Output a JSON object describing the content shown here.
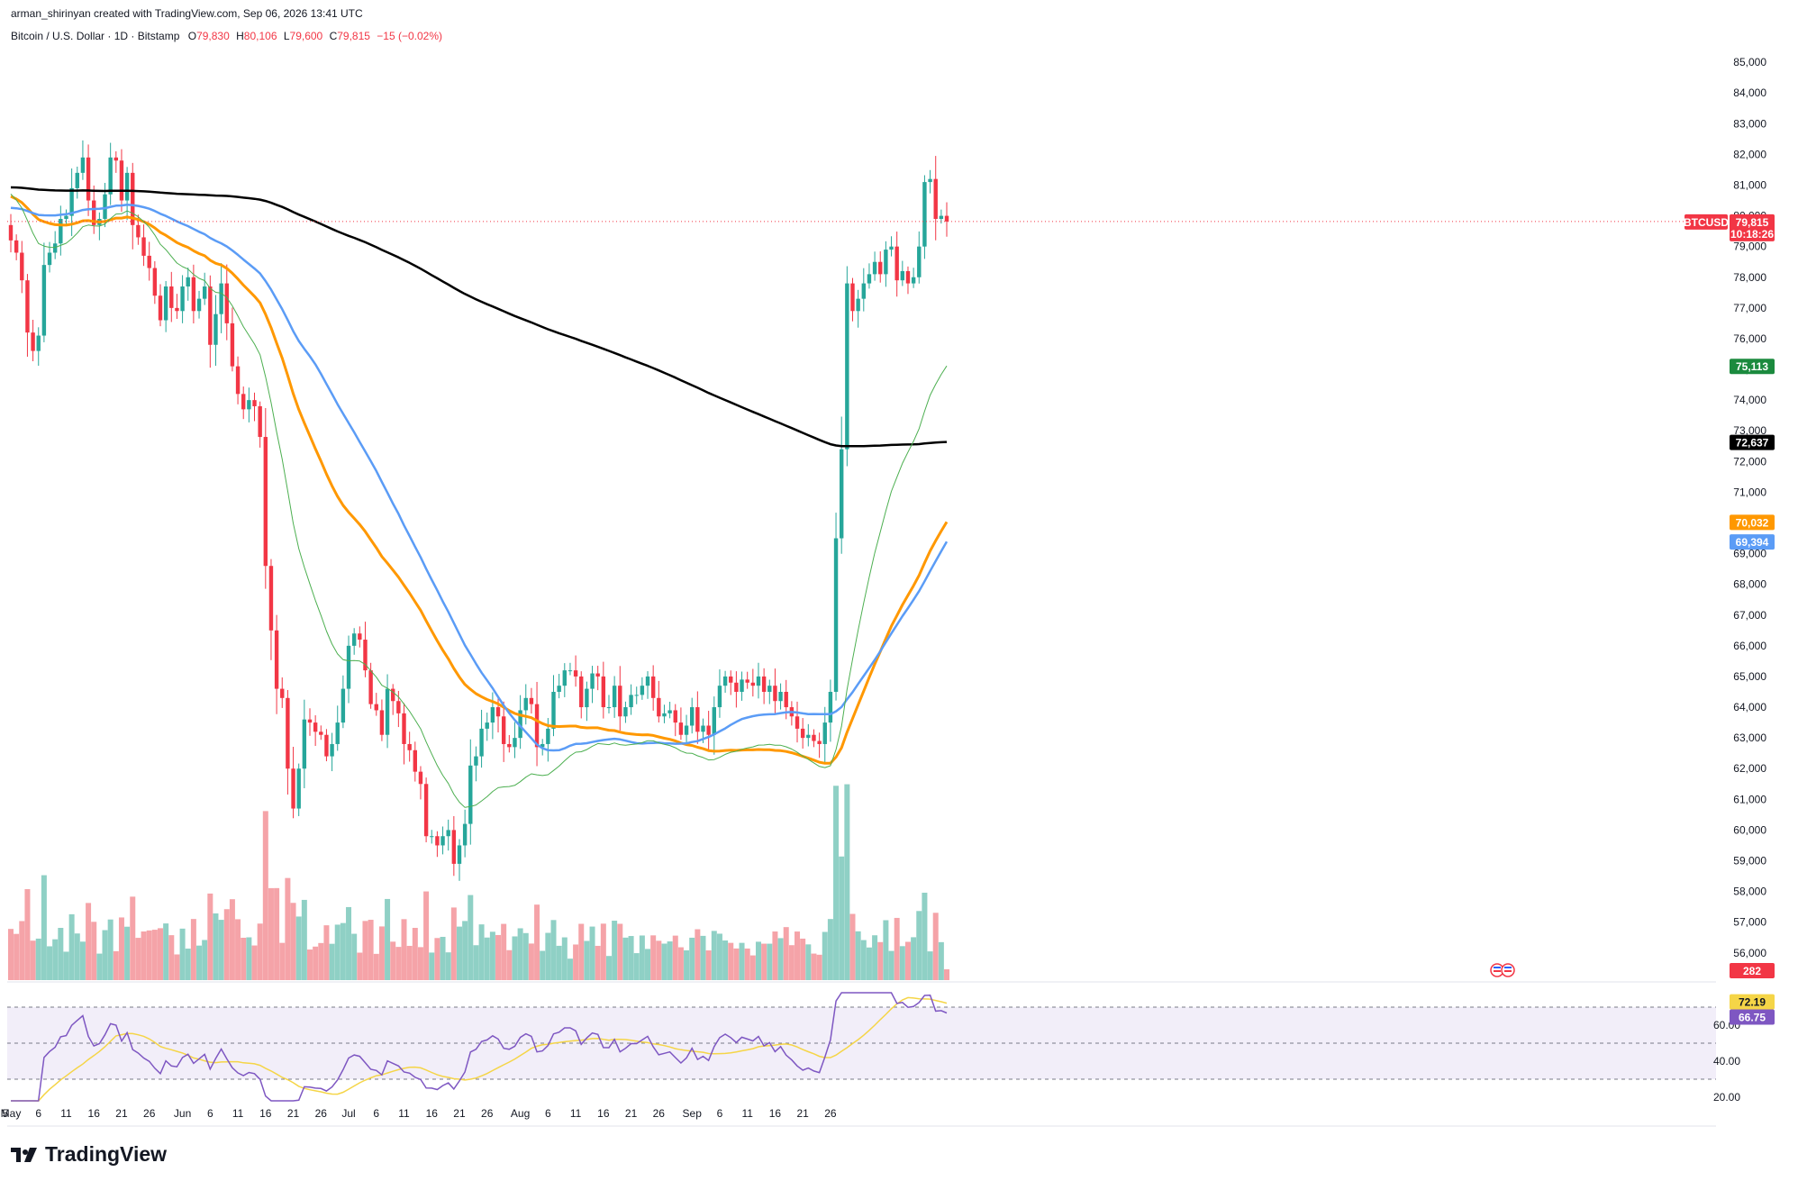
{
  "header": {
    "credit": "arman_shirinyan created with TradingView.com, Sep 06, 2026 13:41 UTC",
    "symbol_line": "Bitcoin / U.S. Dollar · 1D · Bitstamp",
    "ohlc": {
      "o_label": "O",
      "o": "79,830",
      "h_label": "H",
      "h": "80,106",
      "l_label": "L",
      "l": "79,600",
      "c_label": "C",
      "c": "79,815",
      "change": "−15 (−0.02%)"
    }
  },
  "brand": {
    "name": "TradingView",
    "icon": "tradingview-logo-icon"
  },
  "colors": {
    "up": "#26a69a",
    "down": "#f23645",
    "up_vol": "#8fd0c5",
    "down_vol": "#f5a3a8",
    "sma200": "#000000",
    "ema_orange": "#ff9800",
    "sma_blue": "#5b9cf6",
    "ema_green": "#4caf50",
    "rsi": "#7e57c2",
    "rsi_ma": "#f5d547"
  },
  "chart_data": {
    "type": "candlestick",
    "yaxis_ticks": [
      "85,000",
      "84,000",
      "83,000",
      "82,000",
      "81,000",
      "80,000",
      "79,000",
      "78,000",
      "77,000",
      "76,000",
      "75,000",
      "74,000",
      "73,000",
      "72,000",
      "71,000",
      "70,000",
      "69,000",
      "68,000",
      "67,000",
      "66,000",
      "65,000",
      "64,000",
      "63,000",
      "62,000",
      "61,000",
      "60,000",
      "59,000",
      "58,000",
      "57,000",
      "56,000"
    ],
    "ylim": [
      55700,
      85400
    ],
    "xaxis_labels": [
      {
        "label": "5",
        "day": -1
      },
      {
        "label": "May",
        "day": 0
      },
      {
        "label": "6",
        "day": 5
      },
      {
        "label": "11",
        "day": 10
      },
      {
        "label": "16",
        "day": 15
      },
      {
        "label": "21",
        "day": 20
      },
      {
        "label": "26",
        "day": 25
      },
      {
        "label": "Jun",
        "day": 31
      },
      {
        "label": "6",
        "day": 36
      },
      {
        "label": "11",
        "day": 41
      },
      {
        "label": "16",
        "day": 46
      },
      {
        "label": "21",
        "day": 51
      },
      {
        "label": "26",
        "day": 56
      },
      {
        "label": "Jul",
        "day": 61
      },
      {
        "label": "6",
        "day": 66
      },
      {
        "label": "11",
        "day": 71
      },
      {
        "label": "16",
        "day": 76
      },
      {
        "label": "21",
        "day": 81
      },
      {
        "label": "26",
        "day": 86
      },
      {
        "label": "Aug",
        "day": 92
      },
      {
        "label": "6",
        "day": 97
      },
      {
        "label": "11",
        "day": 102
      },
      {
        "label": "16",
        "day": 107
      },
      {
        "label": "21",
        "day": 112
      },
      {
        "label": "26",
        "day": 117
      },
      {
        "label": "Sep",
        "day": 123
      },
      {
        "label": "6",
        "day": 128
      },
      {
        "label": "11",
        "day": 133
      },
      {
        "label": "16",
        "day": 138
      },
      {
        "label": "21",
        "day": 143
      },
      {
        "label": "26",
        "day": 148
      }
    ],
    "closes": [
      79200,
      78800,
      77900,
      76200,
      75600,
      76100,
      78400,
      78800,
      79100,
      79900,
      80000,
      80900,
      81400,
      81900,
      80500,
      79700,
      79900,
      80700,
      81900,
      81800,
      80500,
      81400,
      79700,
      79300,
      78700,
      78300,
      77400,
      76600,
      77700,
      77000,
      76900,
      77700,
      78000,
      76900,
      77300,
      77700,
      75800,
      76800,
      77800,
      76500,
      75100,
      74200,
      73700,
      74000,
      73800,
      72800,
      68600,
      66500,
      64600,
      64300,
      62000,
      60700,
      62000,
      63600,
      63500,
      63200,
      63100,
      62400,
      62800,
      63500,
      64600,
      66000,
      66400,
      66200,
      65200,
      64100,
      63900,
      63100,
      64600,
      64200,
      63800,
      62800,
      62600,
      61900,
      61500,
      59800,
      59800,
      59500,
      59800,
      60000,
      58900,
      59500,
      60200,
      62100,
      62400,
      63300,
      63500,
      64000,
      63700,
      62800,
      62700,
      63000,
      63900,
      64300,
      64100,
      62700,
      62800,
      63300,
      64500,
      64700,
      65200,
      65200,
      65000,
      64000,
      64600,
      65100,
      65000,
      64000,
      64000,
      64700,
      63700,
      64000,
      64400,
      64400,
      64700,
      65000,
      64300,
      63700,
      63800,
      63900,
      63500,
      63100,
      63400,
      64000,
      63200,
      63400,
      63100,
      64000,
      64700,
      65000,
      64800,
      64500,
      64900,
      64800,
      64700,
      65000,
      64500,
      64700,
      64200,
      64500,
      64000,
      63700,
      63300,
      63000,
      63100,
      62900,
      62800,
      63500,
      64500,
      69500,
      72400,
      77800,
      76900,
      77300,
      77800,
      78100,
      78500,
      78100,
      78900,
      79000,
      77900,
      78200,
      77800,
      78000,
      79000,
      81100,
      81200,
      79900,
      80000,
      79815
    ],
    "rsi": {
      "ticks": [
        "60.00",
        "40.00",
        "20.00"
      ],
      "ylim": [
        15,
        80
      ],
      "band": [
        30,
        70
      ],
      "mid": 50,
      "last_rsi": "66.75",
      "last_ma": "72.19"
    },
    "price_labels": [
      {
        "name": "BTCUSD",
        "value": "79,815",
        "sub": "10:18:26",
        "color": "#f23645"
      },
      {
        "name": "ema20",
        "value": "75,113",
        "color": "#1b8a3e"
      },
      {
        "name": "sma200",
        "value": "72,637",
        "color": "#000000"
      },
      {
        "name": "ema50",
        "value": "70,032",
        "color": "#ff9800"
      },
      {
        "name": "sma50",
        "value": "69,394",
        "color": "#5b9cf6"
      },
      {
        "name": "volume",
        "value": "282",
        "color": "#f23645"
      }
    ],
    "indicators": {
      "sma200_last": 72637,
      "ema50_last": 70032,
      "sma50_last": 69394,
      "ema20_last": 75113
    }
  }
}
